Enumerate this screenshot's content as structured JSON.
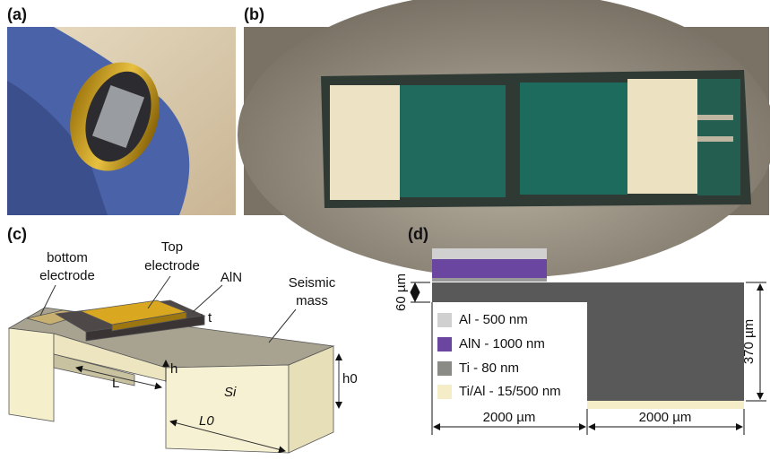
{
  "panel_labels": [
    "(a)",
    "(b)",
    "(c)",
    "(d)"
  ],
  "diagram_c": {
    "bottom_electrode": [
      "bottom",
      "electrode"
    ],
    "top_electrode": [
      "Top",
      "electrode"
    ],
    "aln": "AlN",
    "seismic_mass": [
      "Seismic",
      "mass"
    ],
    "t": "t",
    "h": "h",
    "L": "L",
    "si": "Si",
    "h0": "h0",
    "L0": "L0"
  },
  "diagram_d": {
    "legend": [
      "Al - 500 nm",
      "AlN - 1000 nm",
      "Ti - 80 nm",
      "Ti/Al - 15/500 nm"
    ],
    "dim_60": "60 µm",
    "dim_370": "370 µm",
    "dim_left": "2000 µm",
    "dim_right": "2000 µm"
  }
}
